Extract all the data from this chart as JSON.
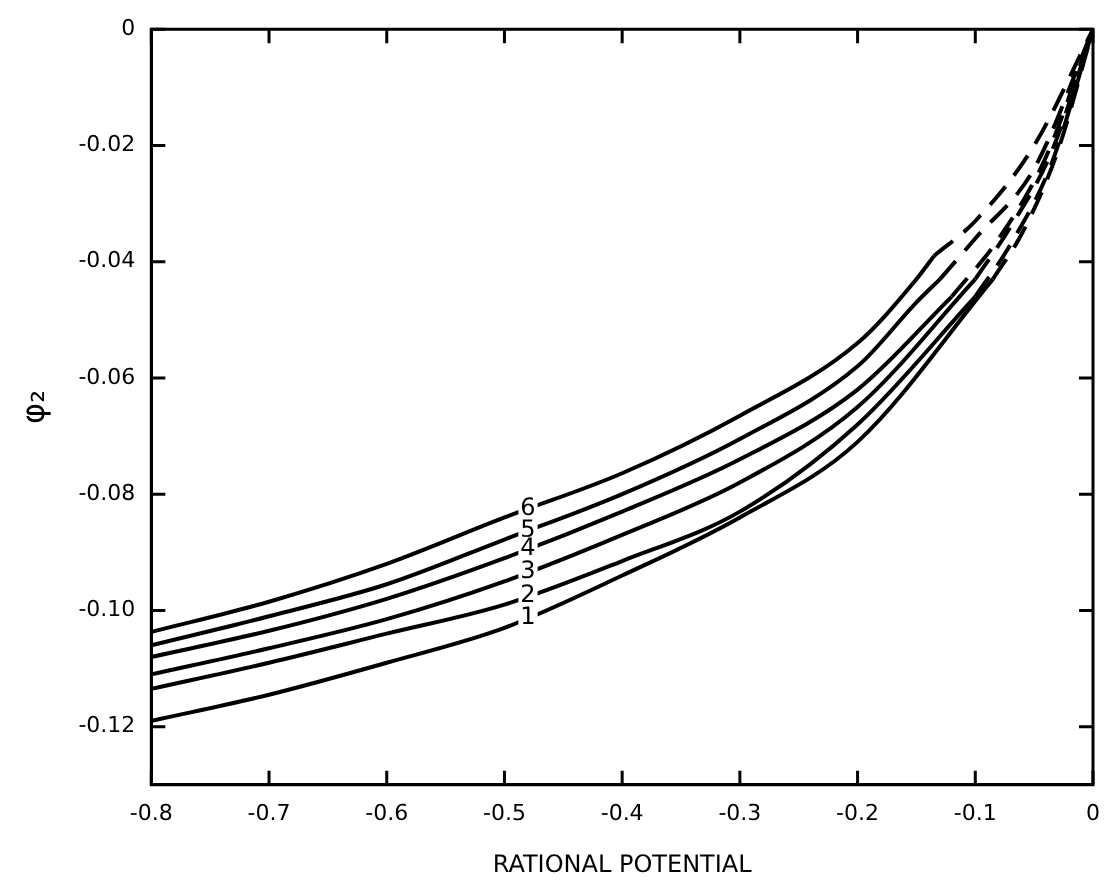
{
  "chart_data": {
    "type": "line",
    "xlabel": "RATIONAL POTENTIAL",
    "ylabel": "φ₂",
    "xlim": [
      -0.8,
      0
    ],
    "xticks": [
      -0.8,
      -0.7,
      -0.6,
      -0.5,
      -0.4,
      -0.3,
      -0.2,
      -0.1,
      0
    ],
    "ylim": [
      -0.13,
      0
    ],
    "yticks": [
      {
        "value": -0.12,
        "label": "-0.12"
      },
      {
        "value": -0.1,
        "label": "-0.10"
      },
      {
        "value": -0.08,
        "label": "-0.08"
      },
      {
        "value": -0.06,
        "label": "-0.06"
      },
      {
        "value": -0.04,
        "label": "-0.04"
      },
      {
        "value": -0.02,
        "label": "-0.02"
      },
      0
    ],
    "grid": false,
    "legend": false,
    "marker": "none",
    "series": [
      {
        "name": "6",
        "color": "#000000",
        "line_style": "solid",
        "x": [
          -0.8,
          -0.7,
          -0.6,
          -0.5,
          -0.4,
          -0.3,
          -0.2,
          -0.15,
          -0.135
        ],
        "values": [
          -0.1037,
          -0.0985,
          -0.092,
          -0.084,
          -0.0764,
          -0.0665,
          -0.054,
          -0.043,
          -0.039
        ]
      },
      {
        "color": "#000000",
        "line_style": "dashed",
        "x": [
          -0.135,
          -0.1,
          -0.05,
          0
        ],
        "values": [
          -0.039,
          -0.033,
          -0.02,
          0
        ]
      },
      {
        "name": "5",
        "color": "#000000",
        "line_style": "solid",
        "x": [
          -0.8,
          -0.7,
          -0.6,
          -0.5,
          -0.4,
          -0.3,
          -0.2,
          -0.15,
          -0.13
        ],
        "values": [
          -0.106,
          -0.101,
          -0.0955,
          -0.0878,
          -0.08,
          -0.0705,
          -0.058,
          -0.047,
          -0.043
        ]
      },
      {
        "color": "#000000",
        "line_style": "dashed",
        "x": [
          -0.13,
          -0.1,
          -0.05,
          0
        ],
        "values": [
          -0.043,
          -0.036,
          -0.024,
          0
        ]
      },
      {
        "name": "4",
        "color": "#000000",
        "line_style": "solid",
        "x": [
          -0.8,
          -0.7,
          -0.6,
          -0.5,
          -0.4,
          -0.3,
          -0.2,
          -0.12
        ],
        "values": [
          -0.108,
          -0.1035,
          -0.098,
          -0.091,
          -0.083,
          -0.074,
          -0.062,
          -0.046
        ]
      },
      {
        "color": "#000000",
        "line_style": "dashed",
        "x": [
          -0.12,
          -0.08,
          -0.04,
          0
        ],
        "values": [
          -0.046,
          -0.036,
          -0.022,
          0
        ]
      },
      {
        "name": "3",
        "color": "#000000",
        "line_style": "solid",
        "x": [
          -0.8,
          -0.7,
          -0.6,
          -0.5,
          -0.4,
          -0.3,
          -0.2,
          -0.1
        ],
        "values": [
          -0.111,
          -0.1065,
          -0.1015,
          -0.095,
          -0.087,
          -0.078,
          -0.065,
          -0.043
        ]
      },
      {
        "color": "#000000",
        "line_style": "dashed",
        "x": [
          -0.1,
          -0.07,
          -0.035,
          0
        ],
        "values": [
          -0.043,
          -0.034,
          -0.021,
          0
        ]
      },
      {
        "name": "2",
        "color": "#000000",
        "line_style": "solid",
        "x": [
          -0.8,
          -0.7,
          -0.6,
          -0.5,
          -0.4,
          -0.3,
          -0.2,
          -0.1
        ],
        "values": [
          -0.1135,
          -0.109,
          -0.104,
          -0.099,
          -0.0915,
          -0.083,
          -0.068,
          -0.046
        ]
      },
      {
        "color": "#000000",
        "line_style": "dashed",
        "x": [
          -0.1,
          -0.07,
          -0.035,
          0
        ],
        "values": [
          -0.046,
          -0.037,
          -0.023,
          0
        ]
      },
      {
        "name": "1",
        "color": "#000000",
        "line_style": "solid",
        "x": [
          -0.8,
          -0.7,
          -0.6,
          -0.5,
          -0.4,
          -0.3,
          -0.2,
          -0.085
        ],
        "values": [
          -0.119,
          -0.1145,
          -0.109,
          -0.103,
          -0.094,
          -0.084,
          -0.071,
          -0.043
        ]
      },
      {
        "color": "#000000",
        "line_style": "dashed",
        "x": [
          -0.085,
          -0.06,
          -0.03,
          0
        ],
        "values": [
          -0.043,
          -0.035,
          -0.021,
          0
        ]
      }
    ]
  }
}
